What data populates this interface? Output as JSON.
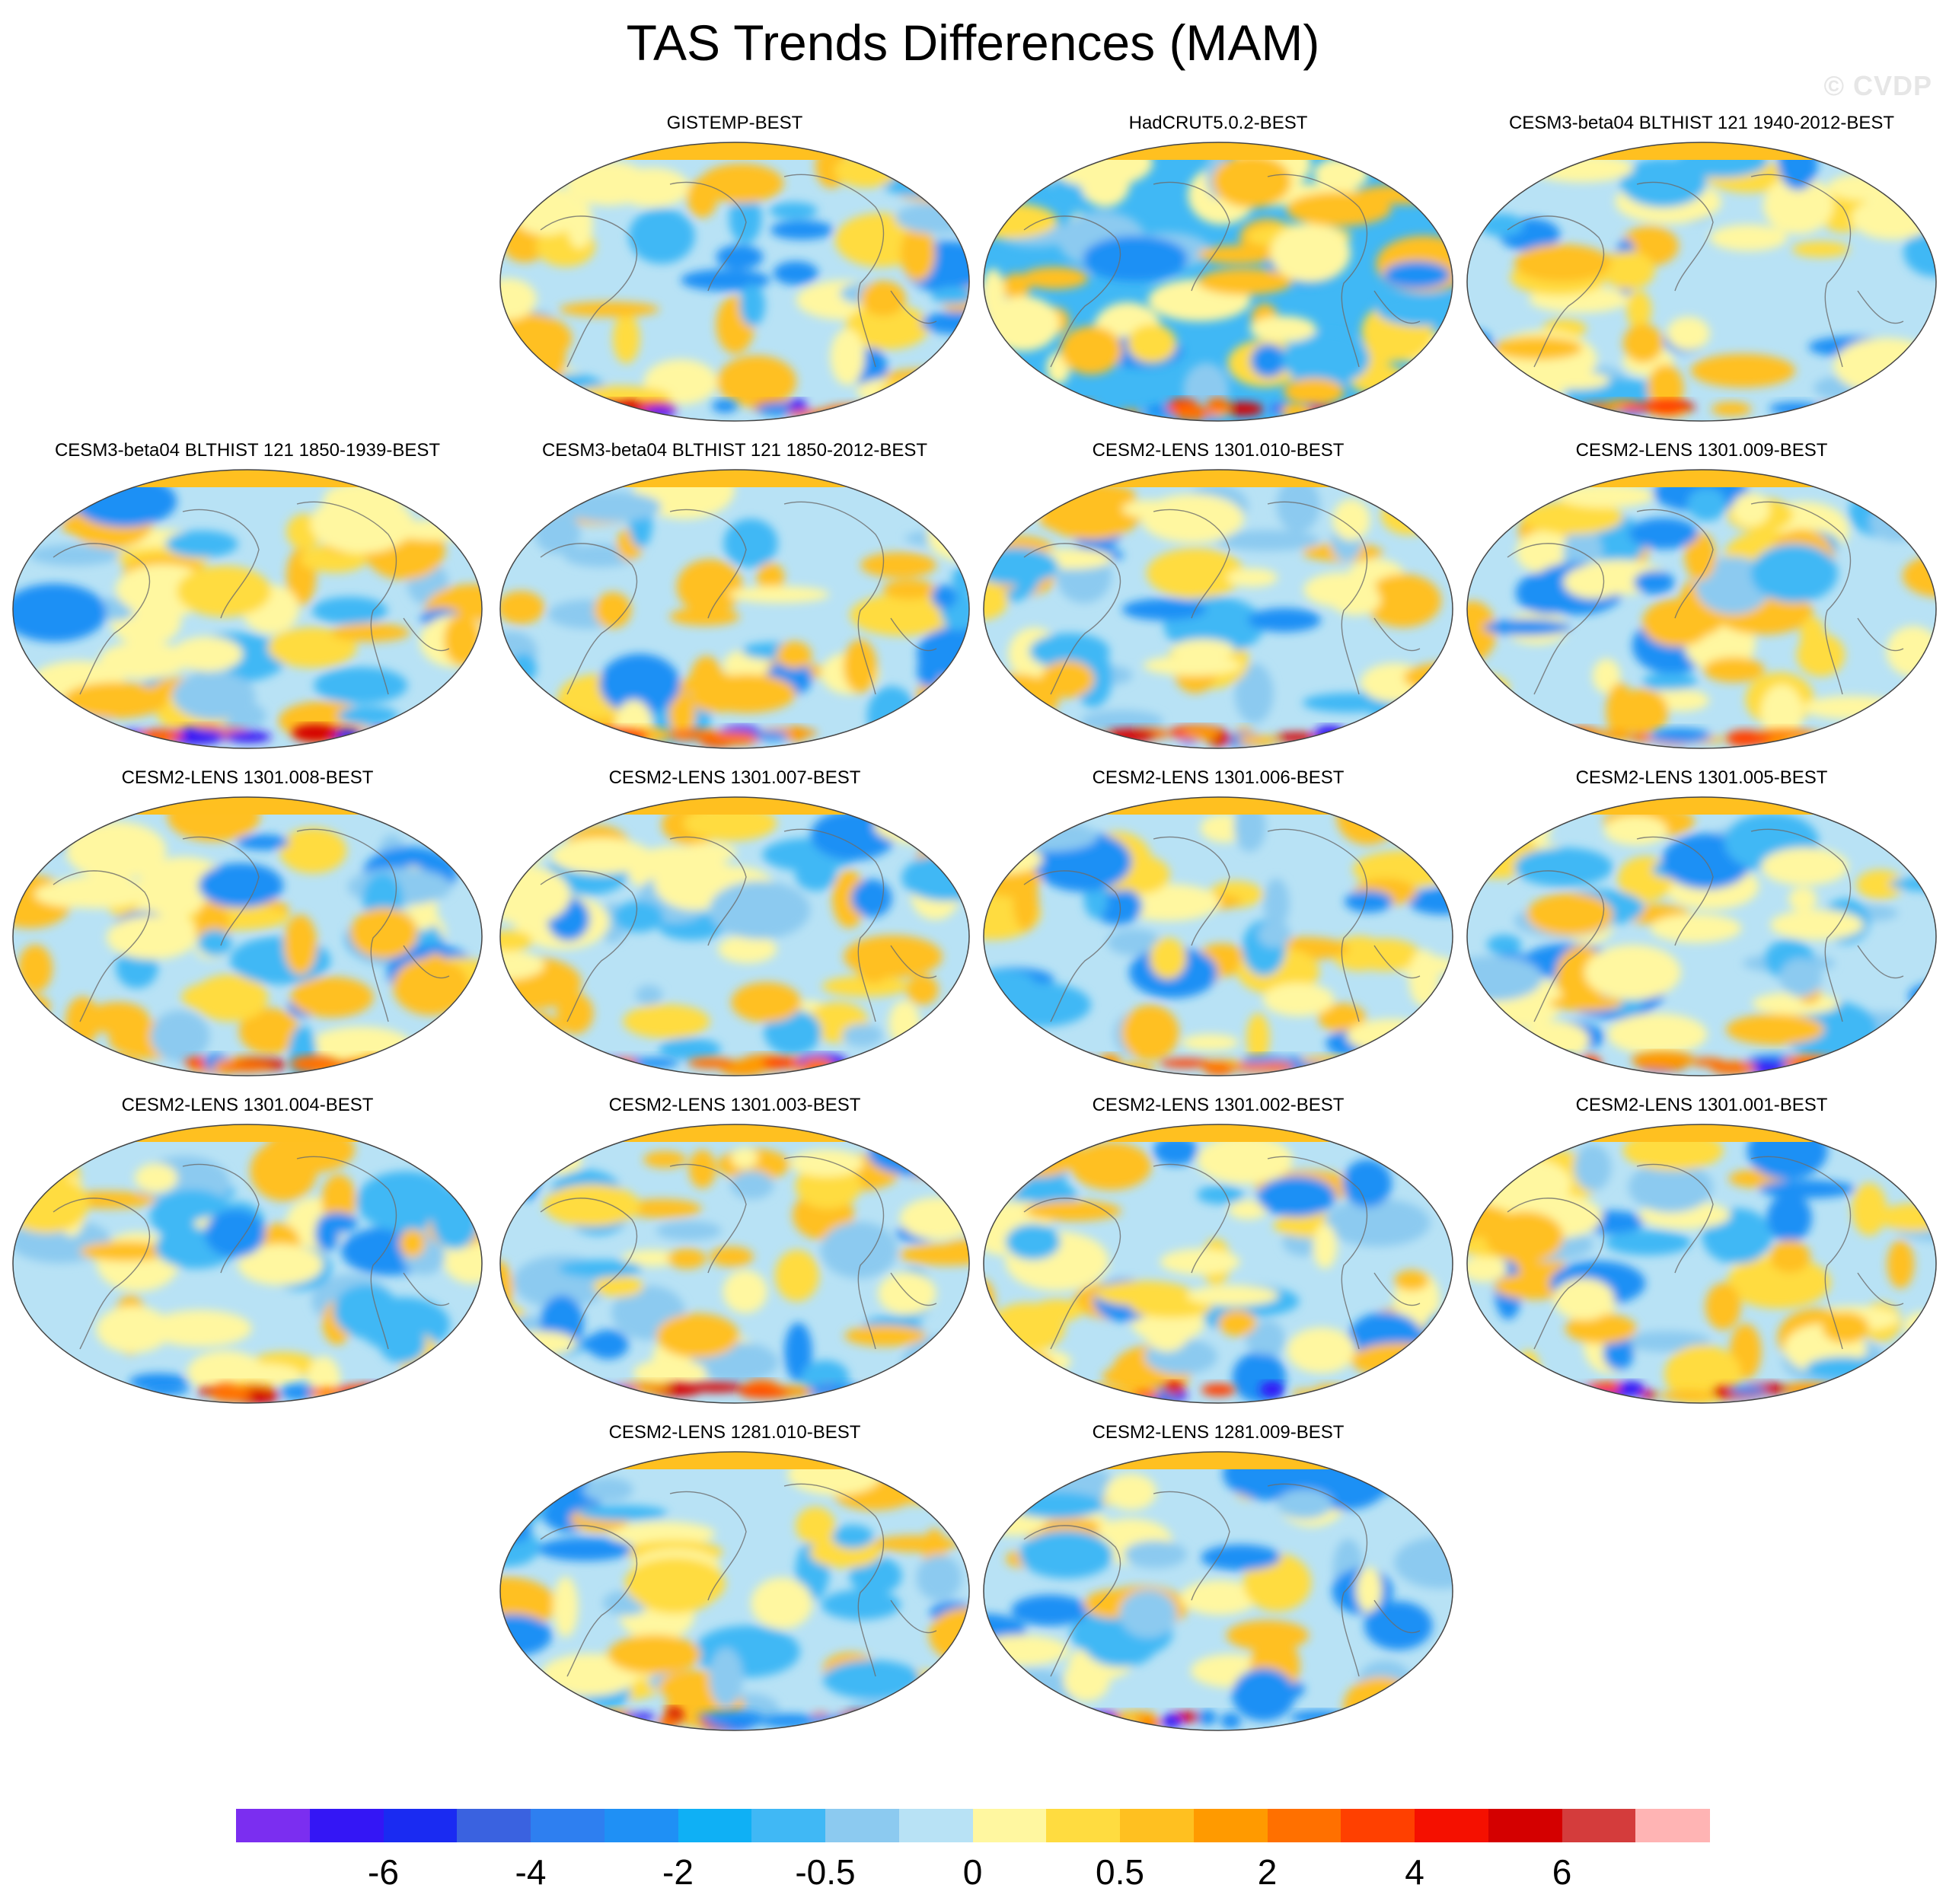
{
  "title": "TAS Trends Differences (MAM)",
  "watermark": "© CVDP",
  "panels": [
    {
      "label": "GISTEMP-BEST"
    },
    {
      "label": "HadCRUT5.0.2-BEST"
    },
    {
      "label": "CESM3-beta04 BLTHIST 121 1940-2012-BEST"
    },
    {
      "label": "CESM3-beta04 BLTHIST 121 1850-1939-BEST"
    },
    {
      "label": "CESM3-beta04 BLTHIST 121 1850-2012-BEST"
    },
    {
      "label": "CESM2-LENS 1301.010-BEST"
    },
    {
      "label": "CESM2-LENS 1301.009-BEST"
    },
    {
      "label": "CESM2-LENS 1301.008-BEST"
    },
    {
      "label": "CESM2-LENS 1301.007-BEST"
    },
    {
      "label": "CESM2-LENS 1301.006-BEST"
    },
    {
      "label": "CESM2-LENS 1301.005-BEST"
    },
    {
      "label": "CESM2-LENS 1301.004-BEST"
    },
    {
      "label": "CESM2-LENS 1301.003-BEST"
    },
    {
      "label": "CESM2-LENS 1301.002-BEST"
    },
    {
      "label": "CESM2-LENS 1301.001-BEST"
    },
    {
      "label": "CESM2-LENS 1281.010-BEST"
    },
    {
      "label": "CESM2-LENS 1281.009-BEST"
    }
  ],
  "colorbar": {
    "colors": [
      "#7b2ef0",
      "#3416f5",
      "#1a2bf2",
      "#3a62e0",
      "#2e7ff0",
      "#1f90f5",
      "#0fb0f5",
      "#40b8f5",
      "#8ccaf0",
      "#b8e2f5",
      "#fff7a0",
      "#ffdc40",
      "#ffc020",
      "#ff9a00",
      "#ff7000",
      "#ff4000",
      "#f51000",
      "#d40000",
      "#d43c3c",
      "#ffb4b4"
    ],
    "labels": [
      "-6",
      "-4",
      "-2",
      "-0.5",
      "0",
      "0.5",
      "2",
      "4",
      "6"
    ],
    "label_boundaries": [
      2,
      4,
      6,
      8,
      10,
      12,
      14,
      16,
      18
    ]
  }
}
